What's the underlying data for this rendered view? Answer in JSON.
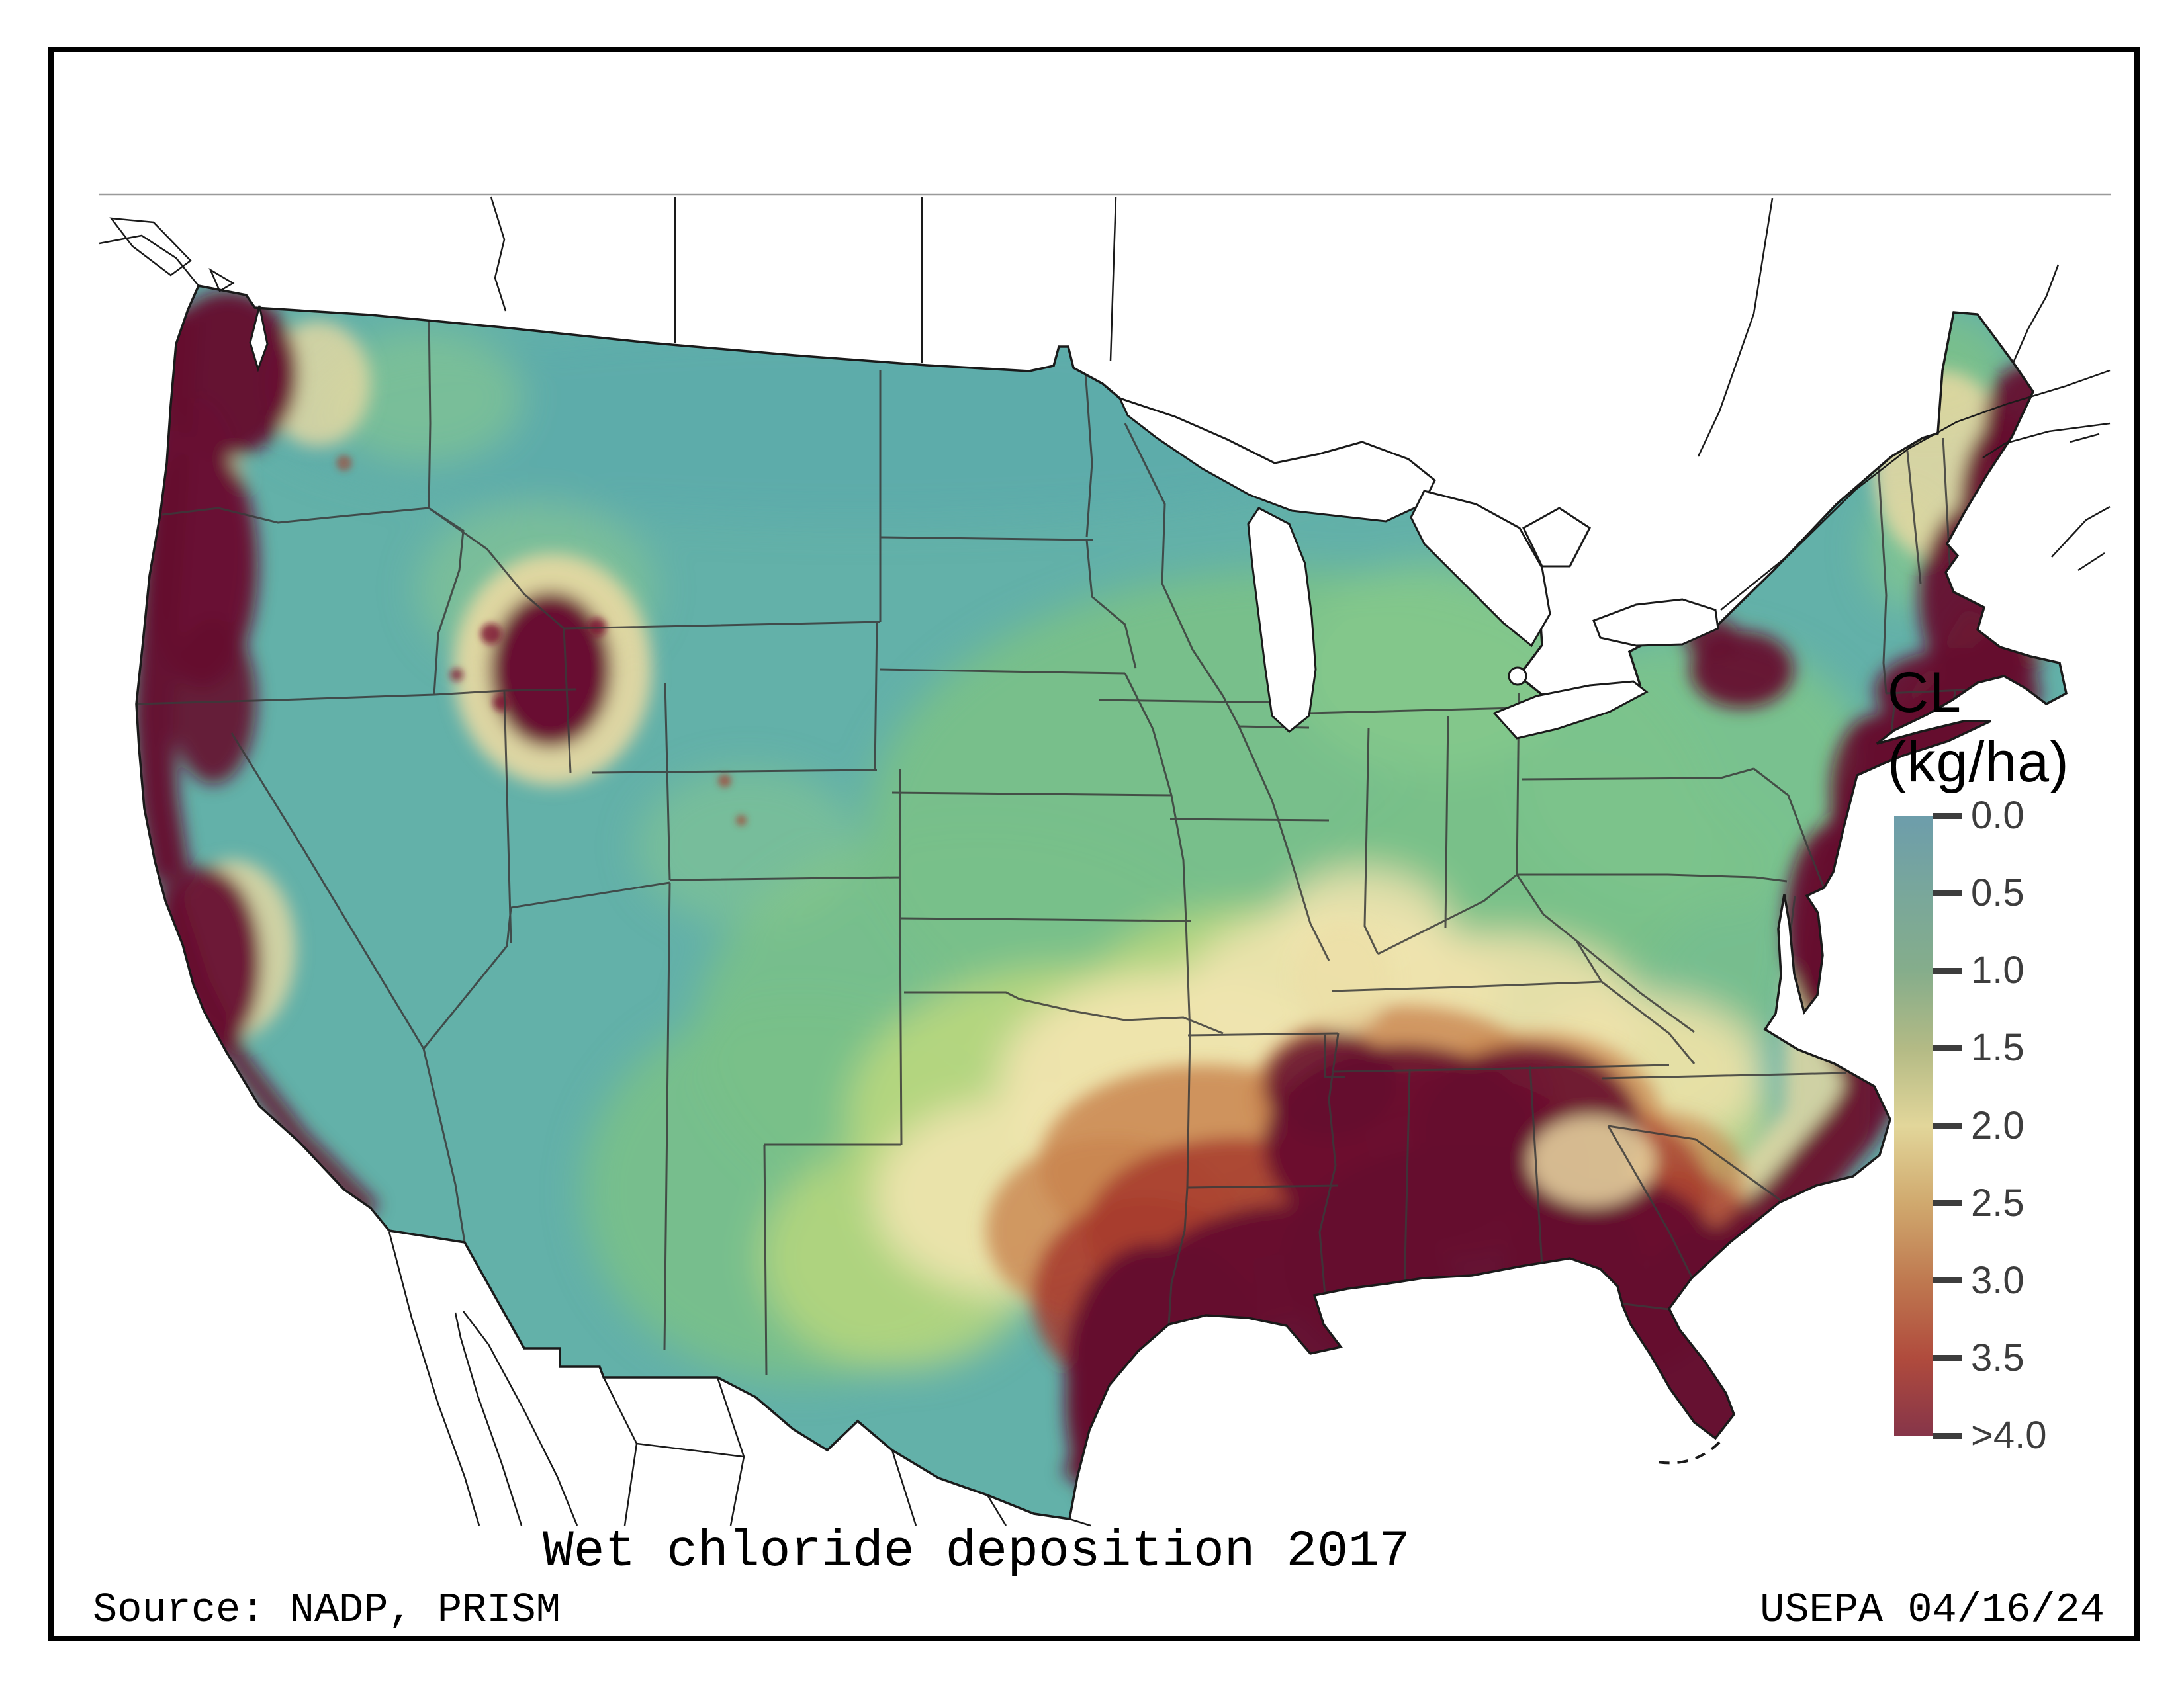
{
  "title": "Wet chloride deposition 2017",
  "source": "Source: NADP, PRISM",
  "credit": "USEPA 04/16/24",
  "legend": {
    "title_line1": "CL",
    "title_line2": "(kg/ha)",
    "ticks": [
      "0.0",
      "0.5",
      "1.0",
      "1.5",
      "2.0",
      "2.5",
      "3.0",
      "3.5",
      ">4.0"
    ],
    "gradient": [
      {
        "value": "0.0",
        "color": "#6d9dab"
      },
      {
        "value": "0.5",
        "color": "#79a79b"
      },
      {
        "value": "1.0",
        "color": "#85ad8b"
      },
      {
        "value": "1.5",
        "color": "#b3ba85"
      },
      {
        "value": "2.0",
        "color": "#e2d69a"
      },
      {
        "value": "2.5",
        "color": "#d0a96e"
      },
      {
        "value": "3.0",
        "color": "#bf7950"
      },
      {
        "value": "3.5",
        "color": "#b04b3d"
      },
      {
        "value": ">4.0",
        "color": "#863549"
      }
    ]
  },
  "map": {
    "region": "Conterminous United States",
    "variable": "Wet chloride deposition",
    "year_shown": "2017",
    "units": "kg/ha",
    "no_data_fill": "#ffffff",
    "boundary_color": "#2a2a2a",
    "palette": {
      "low_teal": "#63b1a9",
      "green": "#79c089",
      "yellow_green": "#b9d77e",
      "cream": "#f0e4af",
      "tan": "#c9854f",
      "red": "#a73b2f",
      "high_maroon": "#650a2e"
    },
    "high_deposition_areas": [
      "Pacific Northwest coast",
      "Northern California coast",
      "Great Salt Lake area (Utah)",
      "Gulf Coast (Texas to Florida)",
      "Atlantic seaboard",
      "Coastal New England and Maine",
      "Eastern Lake Ontario shore"
    ]
  }
}
